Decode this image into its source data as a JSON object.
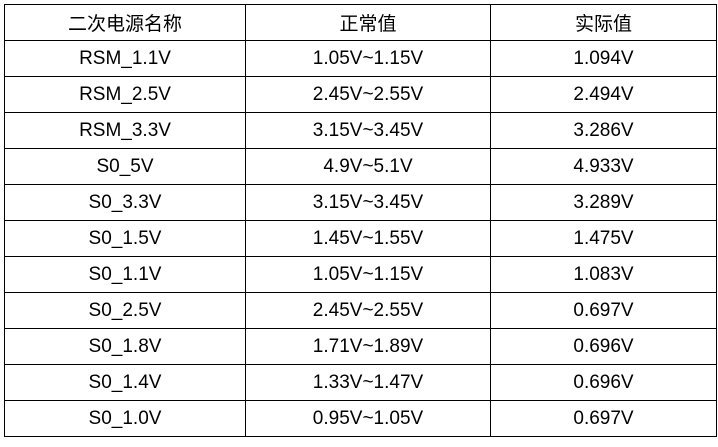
{
  "table": {
    "header": [
      "二次电源名称",
      "正常值",
      "实际值"
    ],
    "rows": [
      [
        "RSM_1.1V",
        "1.05V~1.15V",
        "1.094V"
      ],
      [
        "RSM_2.5V",
        "2.45V~2.55V",
        "2.494V"
      ],
      [
        "RSM_3.3V",
        "3.15V~3.45V",
        "3.286V"
      ],
      [
        "S0_5V",
        "4.9V~5.1V",
        "4.933V"
      ],
      [
        "S0_3.3V",
        "3.15V~3.45V",
        "3.289V"
      ],
      [
        "S0_1.5V",
        "1.45V~1.55V",
        "1.475V"
      ],
      [
        "S0_1.1V",
        "1.05V~1.15V",
        "1.083V"
      ],
      [
        "S0_2.5V",
        "2.45V~2.55V",
        "0.697V"
      ],
      [
        "S0_1.8V",
        "1.71V~1.89V",
        "0.696V"
      ],
      [
        "S0_1.4V",
        "1.33V~1.47V",
        "0.696V"
      ],
      [
        "S0_1.0V",
        "0.95V~1.05V",
        "0.697V"
      ]
    ]
  }
}
